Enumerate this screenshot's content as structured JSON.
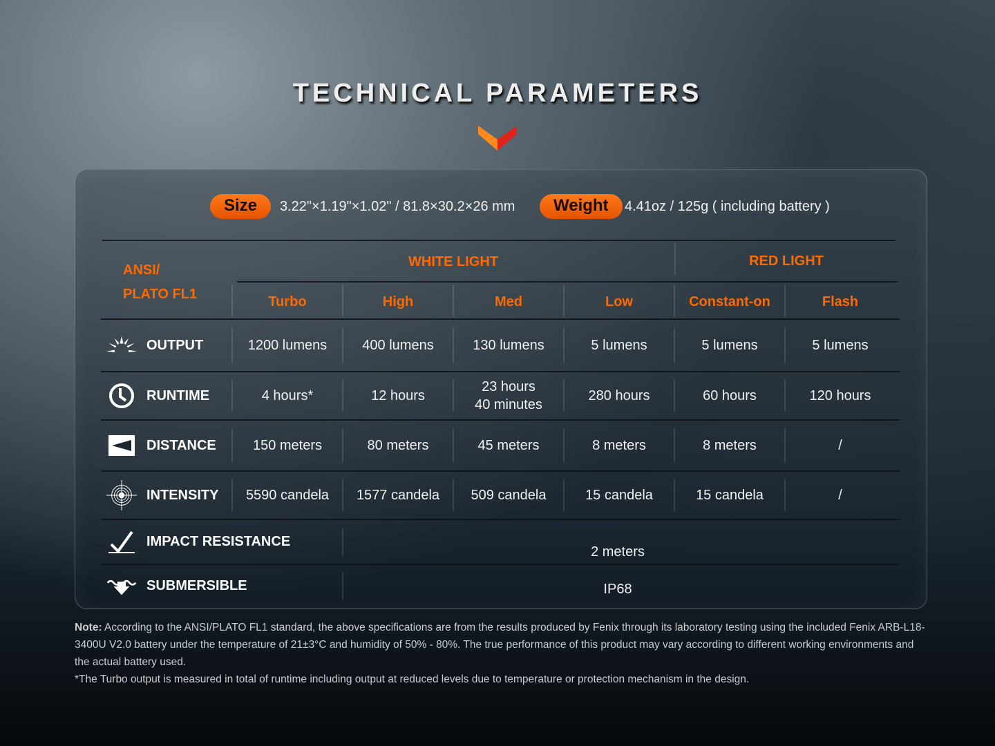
{
  "title": "TECHNICAL PARAMETERS",
  "specs": {
    "size_label": "Size",
    "size_value": "3.22\"×1.19\"×1.02\" / 81.8×30.2×26 mm",
    "weight_label": "Weight",
    "weight_value": "4.41oz / 125g ( including battery )"
  },
  "table": {
    "standard_line1": "ANSI/",
    "standard_line2": "PLATO FL1",
    "groups": [
      "WHITE LIGHT",
      "RED LIGHT"
    ],
    "modes": [
      "Turbo",
      "High",
      "Med",
      "Low",
      "Constant-on",
      "Flash"
    ],
    "rows": [
      {
        "label": "OUTPUT",
        "icon": "sun-rays-icon",
        "values": [
          "1200 lumens",
          "400 lumens",
          "130 lumens",
          "5 lumens",
          "5 lumens",
          "5 lumens"
        ]
      },
      {
        "label": "RUNTIME",
        "icon": "clock-icon",
        "values": [
          "4 hours*",
          "12 hours",
          "23 hours\n40 minutes",
          "280 hours",
          "60 hours",
          "120 hours"
        ]
      },
      {
        "label": "DISTANCE",
        "icon": "beam-distance-icon",
        "values": [
          "150 meters",
          "80 meters",
          "45 meters",
          "8 meters",
          "8 meters",
          "/"
        ]
      },
      {
        "label": "INTENSITY",
        "icon": "target-icon",
        "values": [
          "5590 candela",
          "1577 candela",
          "509 candela",
          "15 candela",
          "15 candela",
          "/"
        ]
      }
    ],
    "impact": {
      "label": "IMPACT RESISTANCE",
      "icon": "impact-icon",
      "value": "2 meters"
    },
    "submersible": {
      "label": "SUBMERSIBLE",
      "icon": "water-icon",
      "value": "IP68"
    }
  },
  "note": {
    "bold": "Note:",
    "text": " According to the ANSI/PLATO FL1 standard, the above specifications are from the results produced by Fenix through its laboratory testing using the included Fenix ARB-L18-3400U V2.0 battery under the temperature of 21±3°C and humidity of 50% - 80%. The true performance of this product may vary according to different working environments and the actual battery used.",
    "footnote": "*The Turbo output is measured in total of runtime including output at reduced levels due to temperature or protection mechanism in the design."
  },
  "colors": {
    "accent": "#ff6a00",
    "pill": "#f06010"
  }
}
